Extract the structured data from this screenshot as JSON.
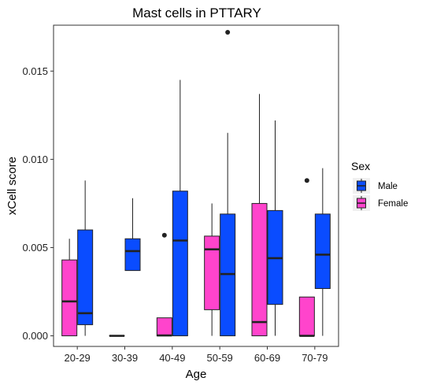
{
  "chart_data": {
    "type": "boxplot",
    "title": "Mast cells in PTTARY",
    "xlabel": "Age",
    "ylabel": "xCell score",
    "categories": [
      "20-29",
      "30-39",
      "40-49",
      "50-59",
      "60-69",
      "70-79"
    ],
    "y_ticks": [
      "0.000",
      "0.005",
      "0.010",
      "0.015"
    ],
    "ylim": [
      -0.0006,
      0.0176
    ],
    "grid": false,
    "legend": {
      "title": "Sex",
      "position": "right",
      "entries": [
        "Male",
        "Female"
      ]
    },
    "series": [
      {
        "name": "Female",
        "color": "#ff44cc",
        "boxes": [
          {
            "category": "20-29",
            "min": 0.0,
            "q1": 0.0,
            "median": 0.00195,
            "q3": 0.0043,
            "max": 0.0055,
            "outliers": []
          },
          {
            "category": "30-39",
            "min": 0.0,
            "q1": 0.0,
            "median": 0.0,
            "q3": 0.0,
            "max": 0.0,
            "outliers": []
          },
          {
            "category": "40-49",
            "min": 0.0,
            "q1": 0.0,
            "median": 2e-05,
            "q3": 0.00102,
            "max": 0.00102,
            "outliers": [
              0.0057
            ]
          },
          {
            "category": "50-59",
            "min": 0.0,
            "q1": 0.00148,
            "median": 0.0049,
            "q3": 0.00565,
            "max": 0.0075,
            "outliers": []
          },
          {
            "category": "60-69",
            "min": 0.0,
            "q1": 0.0,
            "median": 0.00078,
            "q3": 0.0075,
            "max": 0.0137,
            "outliers": []
          },
          {
            "category": "70-79",
            "min": 0.0,
            "q1": 0.0,
            "median": 0.0,
            "q3": 0.0022,
            "max": 0.0022,
            "outliers": [
              0.0088
            ]
          }
        ]
      },
      {
        "name": "Male",
        "color": "#0a4cff",
        "boxes": [
          {
            "category": "20-29",
            "min": 0.0,
            "q1": 0.00063,
            "median": 0.00128,
            "q3": 0.006,
            "max": 0.0088,
            "outliers": []
          },
          {
            "category": "30-39",
            "min": 0.0037,
            "q1": 0.0037,
            "median": 0.0048,
            "q3": 0.0055,
            "max": 0.0078,
            "outliers": []
          },
          {
            "category": "40-49",
            "min": 0.0,
            "q1": 0.0,
            "median": 0.0054,
            "q3": 0.0082,
            "max": 0.0145,
            "outliers": []
          },
          {
            "category": "50-59",
            "min": 0.0,
            "q1": 0.0,
            "median": 0.0035,
            "q3": 0.0069,
            "max": 0.0115,
            "outliers": [
              0.0172
            ]
          },
          {
            "category": "60-69",
            "min": 0.0,
            "q1": 0.00178,
            "median": 0.0044,
            "q3": 0.0071,
            "max": 0.0122,
            "outliers": []
          },
          {
            "category": "70-79",
            "min": 0.0,
            "q1": 0.00268,
            "median": 0.0046,
            "q3": 0.0069,
            "max": 0.0095,
            "outliers": []
          }
        ]
      }
    ]
  }
}
